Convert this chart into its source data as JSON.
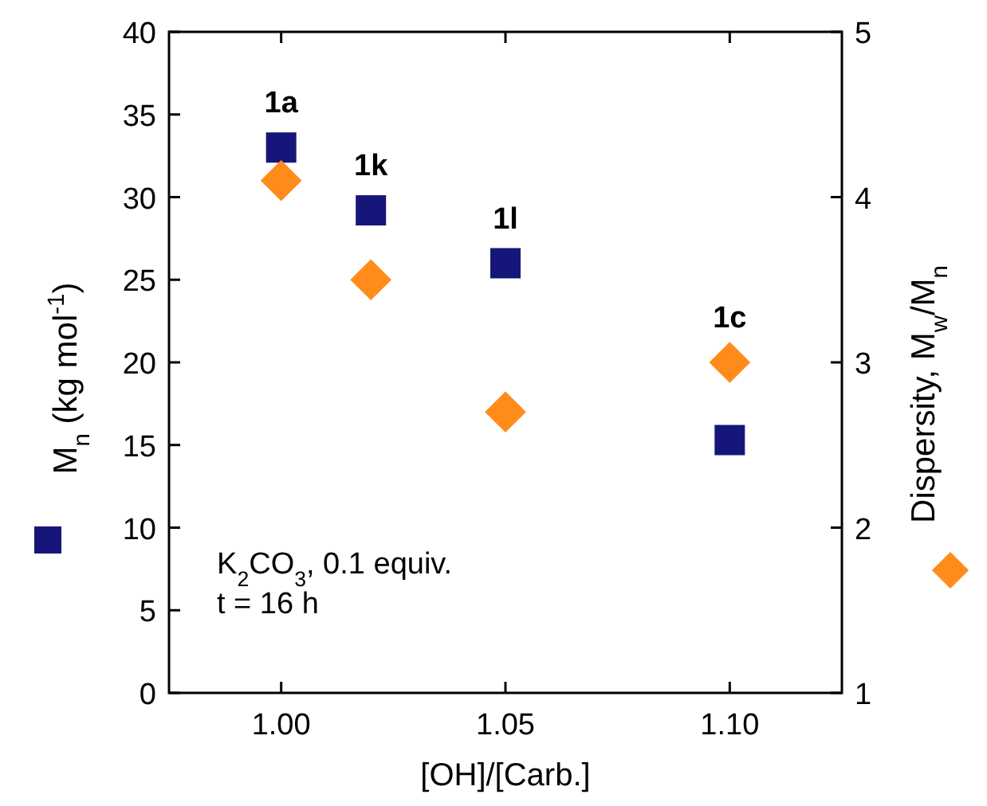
{
  "chart_data": {
    "type": "scatter",
    "xlabel": "[OH]/[Carb.]",
    "ylabel": "M$_{n}$ (kg mol$^{-1}$)",
    "y2label": "Dispersity, M$_{w}$/M$_{n}$",
    "x": [
      1.0,
      1.02,
      1.05,
      1.1
    ],
    "series": [
      {
        "color": "#16167a",
        "marker": "square",
        "values": [
          33,
          29.2,
          26,
          15.3
        ]
      },
      {
        "color": "#ff8c1a",
        "marker": "diamond",
        "axis": "y2",
        "values": [
          4.1,
          3.5,
          2.7,
          3.0
        ]
      }
    ],
    "xlim": [
      0.975,
      1.125
    ],
    "xticks": [
      {
        "value": 1.0,
        "label": "1.00"
      },
      {
        "value": 1.05,
        "label": "1.05"
      },
      {
        "value": 1.1,
        "label": "1.10"
      }
    ],
    "ylim": [
      0,
      40
    ],
    "yticks": [
      0,
      5,
      10,
      15,
      20,
      25,
      30,
      35,
      40
    ],
    "y2lim": [
      1,
      5
    ],
    "y2ticks": [
      1,
      2,
      3,
      4,
      5
    ],
    "grid": false,
    "annotations": [
      {
        "text": "1a",
        "x": 1.0,
        "y": 33
      },
      {
        "text": "1k",
        "x": 1.02,
        "y": 29.2
      },
      {
        "text": "1l",
        "x": 1.05,
        "y": 26
      },
      {
        "text": "1c",
        "x": 1.1,
        "y": 20
      },
      "K$_{2}$CO$_{3}$, 0.1 equiv.",
      "t = 16 h"
    ]
  }
}
